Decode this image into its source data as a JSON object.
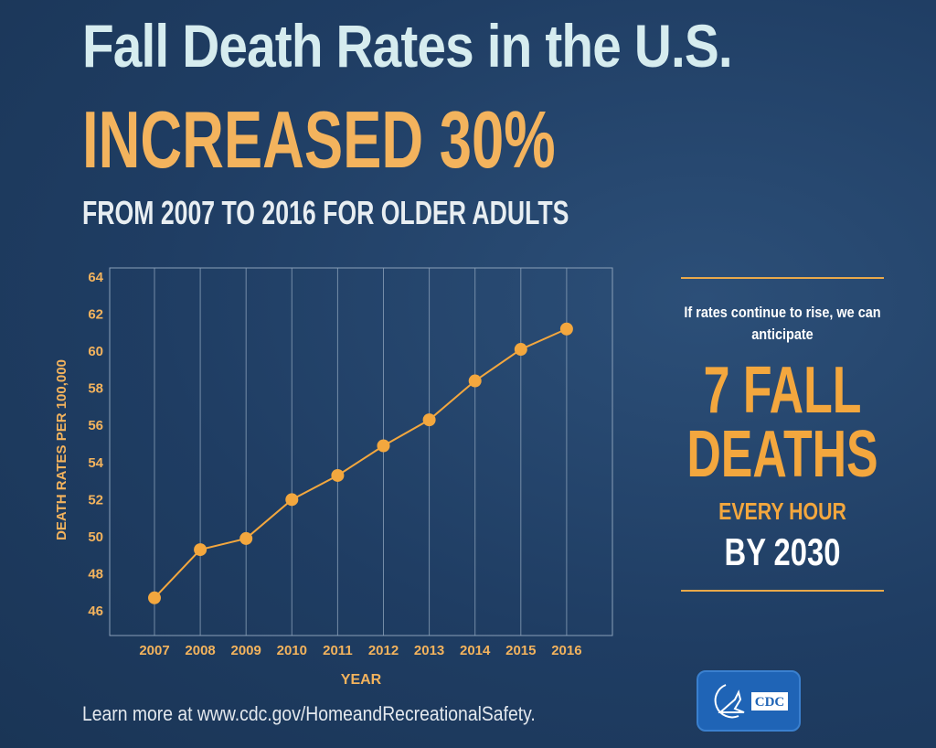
{
  "header": {
    "title": "Fall Death Rates in the U.S.",
    "headline": "INCREASED 30%",
    "subtitle": "FROM 2007 TO 2016 FOR OLDER ADULTS"
  },
  "chart_data": {
    "type": "line",
    "x": [
      "2007",
      "2008",
      "2009",
      "2010",
      "2011",
      "2012",
      "2013",
      "2014",
      "2015",
      "2016"
    ],
    "series": [
      {
        "values": [
          46.7,
          49.3,
          49.9,
          52.0,
          53.3,
          54.9,
          56.3,
          58.4,
          60.1,
          61.2
        ]
      }
    ],
    "xlabel": "YEAR",
    "ylabel": "DEATH RATES PER 100,000",
    "ylim": [
      45,
      64.5
    ],
    "yticks": [
      "46",
      "48",
      "50",
      "52",
      "54",
      "56",
      "58",
      "60",
      "62",
      "64"
    ],
    "grid": "vertical",
    "colors": {
      "line": "#f3a73e",
      "grid": "#8aa0b8",
      "axis_text": "#f3b35d"
    }
  },
  "side": {
    "intro": "If rates continue to rise, we can anticipate",
    "big": "7 FALL DEATHS",
    "every": "EVERY HOUR",
    "by": "BY 2030"
  },
  "footer": {
    "text": "Learn more at www.cdc.gov/HomeandRecreationalSafety."
  },
  "logo": {
    "text": "CDC"
  }
}
